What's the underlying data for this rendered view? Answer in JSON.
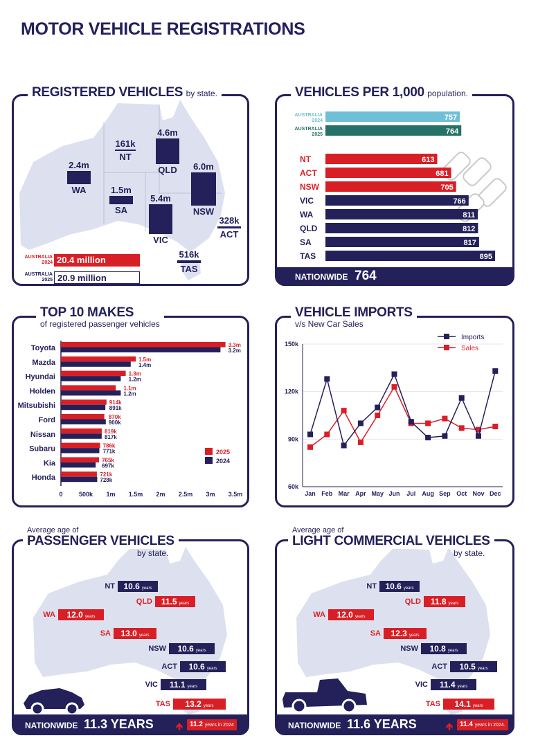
{
  "page_title": "MOTOR VEHICLE REGISTRATIONS",
  "colors": {
    "navy": "#23205a",
    "red": "#d91f26",
    "light_blue": "#6fc0d6",
    "teal": "#247168",
    "map": "#dde1ef"
  },
  "registered": {
    "title": "REGISTERED VEHICLES",
    "subtitle": "by state.",
    "states": [
      {
        "value": "2.4m",
        "name": "WA",
        "raw": 2.4
      },
      {
        "value": "161k",
        "name": "NT",
        "raw": 0.161
      },
      {
        "value": "4.6m",
        "name": "QLD",
        "raw": 4.6
      },
      {
        "value": "1.5m",
        "name": "SA",
        "raw": 1.5
      },
      {
        "value": "6.0m",
        "name": "NSW",
        "raw": 6.0
      },
      {
        "value": "5.4m",
        "name": "VIC",
        "raw": 5.4
      },
      {
        "value": "328k",
        "name": "ACT",
        "raw": 0.328
      },
      {
        "value": "516k",
        "name": "TAS",
        "raw": 0.516
      }
    ],
    "australia_2024_label": "AUSTRALIA 2024",
    "australia_2024_value": "20.4 million",
    "australia_2025_label": "AUSTRALIA 2025",
    "australia_2025_value": "20.9 million"
  },
  "per_1000": {
    "title": "VEHICLES PER 1,000",
    "subtitle": "population.",
    "aus_2024_label": "AUSTRALIA 2024",
    "aus_2024_value": 757,
    "aus_2025_label": "AUSTRALIA 2025",
    "aus_2025_value": 764,
    "states": [
      {
        "name": "NT",
        "value": 613,
        "highlight": true
      },
      {
        "name": "ACT",
        "value": 681,
        "highlight": true
      },
      {
        "name": "NSW",
        "value": 705,
        "highlight": true
      },
      {
        "name": "VIC",
        "value": 766,
        "highlight": false
      },
      {
        "name": "WA",
        "value": 811,
        "highlight": false
      },
      {
        "name": "QLD",
        "value": 812,
        "highlight": false
      },
      {
        "name": "SA",
        "value": 817,
        "highlight": false
      },
      {
        "name": "TAS",
        "value": 895,
        "highlight": false
      }
    ],
    "nationwide_label": "NATIONWIDE",
    "nationwide_value": "764"
  },
  "top_makes": {
    "title": "TOP 10 MAKES",
    "subtitle": "of registered passenger vehicles",
    "legend_2025": "2025",
    "legend_2024": "2024",
    "xticks": [
      "0",
      "500k",
      "1m",
      "1.5m",
      "2m",
      "2.5m",
      "3m",
      "3.5m"
    ],
    "makes": [
      {
        "name": "Toyota",
        "v2025": 3.3,
        "l2025": "3.3m",
        "v2024": 3.2,
        "l2024": "3.2m"
      },
      {
        "name": "Mazda",
        "v2025": 1.5,
        "l2025": "1.5m",
        "v2024": 1.4,
        "l2024": "1.4m"
      },
      {
        "name": "Hyundai",
        "v2025": 1.3,
        "l2025": "1.3m",
        "v2024": 1.2,
        "l2024": "1.2m"
      },
      {
        "name": "Holden",
        "v2025": 1.1,
        "l2025": "1.1m",
        "v2024": 1.2,
        "l2024": "1.2m"
      },
      {
        "name": "Mitsubishi",
        "v2025": 0.914,
        "l2025": "914k",
        "v2024": 0.891,
        "l2024": "891k"
      },
      {
        "name": "Ford",
        "v2025": 0.87,
        "l2025": "870k",
        "v2024": 0.9,
        "l2024": "900k"
      },
      {
        "name": "Nissan",
        "v2025": 0.819,
        "l2025": "819k",
        "v2024": 0.817,
        "l2024": "817k"
      },
      {
        "name": "Subaru",
        "v2025": 0.786,
        "l2025": "786k",
        "v2024": 0.771,
        "l2024": "771k"
      },
      {
        "name": "Kia",
        "v2025": 0.765,
        "l2025": "765k",
        "v2024": 0.697,
        "l2024": "697k"
      },
      {
        "name": "Honda",
        "v2025": 0.721,
        "l2025": "721k",
        "v2024": 0.728,
        "l2024": "728k"
      }
    ]
  },
  "imports": {
    "title": "VEHICLE IMPORTS",
    "subtitle": "v/s New Car Sales",
    "legend_imports": "Imports",
    "legend_sales": "Sales",
    "yticks": [
      {
        "v": 150000,
        "label": "150k"
      },
      {
        "v": 120000,
        "label": "120k"
      },
      {
        "v": 90000,
        "label": "90k"
      },
      {
        "v": 60000,
        "label": "60k"
      }
    ],
    "months": [
      "Jan",
      "Feb",
      "Mar",
      "Apr",
      "May",
      "Jun",
      "Jul",
      "Aug",
      "Sep",
      "Oct",
      "Nov",
      "Dec"
    ],
    "imports_values": [
      93000,
      128000,
      86000,
      100000,
      110000,
      131000,
      101000,
      91000,
      92000,
      116000,
      92000,
      133000
    ],
    "sales_values": [
      85000,
      93000,
      108000,
      88000,
      105000,
      123000,
      100000,
      100000,
      103000,
      97000,
      96000,
      98000
    ]
  },
  "passenger": {
    "pre_title": "Average age of",
    "title": "PASSENGER VEHICLES",
    "subtitle": "by state.",
    "years_word": "years",
    "states": [
      {
        "name": "NT",
        "value": "10.6",
        "red": false
      },
      {
        "name": "QLD",
        "value": "11.5",
        "red": true
      },
      {
        "name": "WA",
        "value": "12.0",
        "red": true
      },
      {
        "name": "SA",
        "value": "13.0",
        "red": true
      },
      {
        "name": "NSW",
        "value": "10.6",
        "red": false
      },
      {
        "name": "ACT",
        "value": "10.6",
        "red": false
      },
      {
        "name": "VIC",
        "value": "11.1",
        "red": false
      },
      {
        "name": "TAS",
        "value": "13.2",
        "red": true
      }
    ],
    "nationwide_label": "NATIONWIDE",
    "nationwide_value": "11.3 YEARS",
    "prev_value": "11.2",
    "prev_text": "years in 2024"
  },
  "light_commercial": {
    "pre_title": "Average age of",
    "title": "LIGHT COMMERCIAL VEHICLES",
    "subtitle": "by state.",
    "years_word": "years",
    "states": [
      {
        "name": "NT",
        "value": "10.6",
        "red": false
      },
      {
        "name": "QLD",
        "value": "11.8",
        "red": true
      },
      {
        "name": "WA",
        "value": "12.0",
        "red": true
      },
      {
        "name": "SA",
        "value": "12.3",
        "red": true
      },
      {
        "name": "NSW",
        "value": "10.8",
        "red": false
      },
      {
        "name": "ACT",
        "value": "10.5",
        "red": false
      },
      {
        "name": "VIC",
        "value": "11.4",
        "red": false
      },
      {
        "name": "TAS",
        "value": "14.1",
        "red": true
      }
    ],
    "nationwide_label": "NATIONWIDE",
    "nationwide_value": "11.6 YEARS",
    "prev_value": "11.4",
    "prev_text": "years in 2024."
  }
}
